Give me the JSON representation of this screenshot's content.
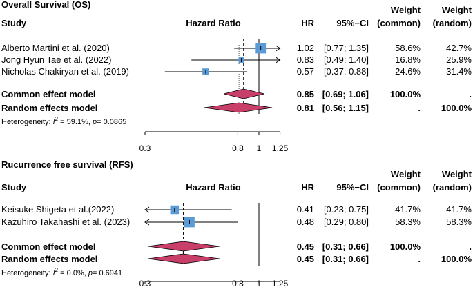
{
  "chart_data": [
    {
      "type": "forest",
      "title": "Overall Survival (OS)",
      "headers": {
        "study": "Study",
        "hazard_ratio": "Hazard Ratio",
        "hr": "HR",
        "ci": "95%−CI",
        "weight_common": [
          "Weight",
          "(common)"
        ],
        "weight_random": [
          "Weight",
          "(random)"
        ]
      },
      "studies": [
        {
          "name": "Alberto Martini et al. (2020)",
          "hr": 1.02,
          "lower": 0.77,
          "upper": 1.35,
          "hr_text": "1.02",
          "ci_text": "[0.77; 1.35]",
          "w_common": "58.6%",
          "w_random": "42.7%",
          "weight": 58.6
        },
        {
          "name": "Jong Hyun Tae et al. (2022)",
          "hr": 0.83,
          "lower": 0.49,
          "upper": 1.4,
          "hr_text": "0.83",
          "ci_text": "[0.49; 1.40]",
          "w_common": "16.8%",
          "w_random": "25.9%",
          "weight": 16.8
        },
        {
          "name": "Nicholas Chakiryan et al. (2019)",
          "hr": 0.57,
          "lower": 0.37,
          "upper": 0.88,
          "hr_text": "0.57",
          "ci_text": "[0.37; 0.88]",
          "w_common": "24.6%",
          "w_random": "31.4%",
          "weight": 24.6
        }
      ],
      "summaries": [
        {
          "name": "Common effect model",
          "hr": 0.85,
          "lower": 0.69,
          "upper": 1.06,
          "hr_text": "0.85",
          "ci_text": "[0.69; 1.06]",
          "w_common": "100.0%",
          "w_random": "."
        },
        {
          "name": "Random effects model",
          "hr": 0.81,
          "lower": 0.56,
          "upper": 1.15,
          "hr_text": "0.81",
          "ci_text": "[0.56; 1.15]",
          "w_common": ".",
          "w_random": "100.0%"
        }
      ],
      "heterogeneity": {
        "prefix": "Heterogeneity: ",
        "i2_label": "I",
        "i2_sup": "2",
        "rest": " = 59.1%, ",
        "p_label": "p",
        "p_value": "= 0.0865"
      },
      "x_axis": {
        "scale": "log",
        "min": 0.3,
        "max": 1.25,
        "ticks": [
          0.3,
          0.8,
          1,
          1.25
        ],
        "tick_labels": [
          "0.3",
          "0.8",
          "1",
          "1.25"
        ]
      }
    },
    {
      "type": "forest",
      "title": "Rucurrence free survival (RFS)",
      "headers": {
        "study": "Study",
        "hazard_ratio": "Hazard Ratio",
        "hr": "HR",
        "ci": "95%−CI",
        "weight_common": [
          "Weight",
          "(common)"
        ],
        "weight_random": [
          "Weight",
          "(random)"
        ]
      },
      "studies": [
        {
          "name": "Keisuke Shigeta et al.(2022)",
          "hr": 0.41,
          "lower": 0.23,
          "upper": 0.75,
          "hr_text": "0.41",
          "ci_text": "[0.23; 0.75]",
          "w_common": "41.7%",
          "w_random": "41.7%",
          "weight": 41.7
        },
        {
          "name": "Kazuhiro Takahashi et al. (2023)",
          "hr": 0.48,
          "lower": 0.29,
          "upper": 0.8,
          "hr_text": "0.48",
          "ci_text": "[0.29; 0.80]",
          "w_common": "58.3%",
          "w_random": "58.3%",
          "weight": 58.3
        }
      ],
      "summaries": [
        {
          "name": "Common effect model",
          "hr": 0.45,
          "lower": 0.31,
          "upper": 0.66,
          "hr_text": "0.45",
          "ci_text": "[0.31; 0.66]",
          "w_common": "100.0%",
          "w_random": "."
        },
        {
          "name": "Random effects model",
          "hr": 0.45,
          "lower": 0.31,
          "upper": 0.66,
          "hr_text": "0.45",
          "ci_text": "[0.31; 0.66]",
          "w_common": ".",
          "w_random": "100.0%"
        }
      ],
      "heterogeneity": {
        "prefix": "Heterogeneity: ",
        "i2_label": "I",
        "i2_sup": "2",
        "rest": " = 0.0%, ",
        "p_label": "p",
        "p_value": "= 0.6941"
      },
      "x_axis": {
        "scale": "log",
        "min": 0.3,
        "max": 1.25,
        "ticks": [
          0.3,
          0.8,
          1,
          1.25
        ],
        "tick_labels": [
          "0.3",
          "0.8",
          "1",
          "1.25"
        ]
      }
    }
  ],
  "colors": {
    "square": "#5b9bd5",
    "diamond": "#c8406a",
    "line": "#000000",
    "ref_line": "#555555"
  }
}
